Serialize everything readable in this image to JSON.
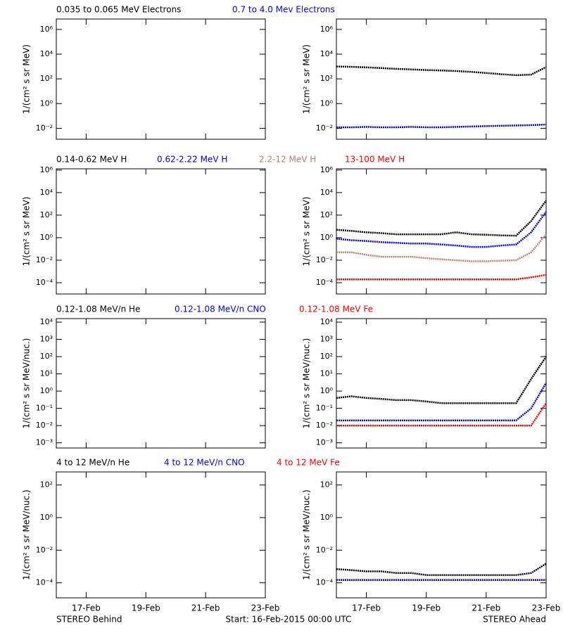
{
  "chart_data": [
    {
      "type": "line",
      "log_y": true,
      "ylabel": "1/(cm² s sr MeV)",
      "x": [
        0,
        0.5,
        1,
        1.5,
        2,
        2.5,
        3,
        3.5,
        4,
        4.5,
        5,
        5.5,
        6,
        6.5,
        7
      ],
      "ylim": [
        0.0013,
        7000000
      ],
      "yticks": [
        {
          "value": 1000000,
          "label": "10⁶"
        },
        {
          "value": 10000,
          "label": "10⁴"
        },
        {
          "value": 100,
          "label": "10²"
        },
        {
          "value": 1,
          "label": "10⁰"
        },
        {
          "value": 0.01,
          "label": "10⁻²"
        }
      ],
      "series": [
        {
          "name": "0.035 to 0.065 MeV Electrons",
          "color": "#000000",
          "values": [
            1000,
            950,
            850,
            750,
            650,
            580,
            520,
            480,
            430,
            370,
            300,
            240,
            200,
            220,
            900
          ]
        },
        {
          "name": "0.7 to 4.0 Mev Electrons",
          "color": "#0000ff",
          "values": [
            0.012,
            0.012,
            0.013,
            0.012,
            0.012,
            0.013,
            0.012,
            0.012,
            0.013,
            0.014,
            0.015,
            0.016,
            0.017,
            0.018,
            0.02
          ]
        }
      ]
    },
    {
      "type": "line",
      "log_y": true,
      "ylabel": "1/(cm² s sr MeV)",
      "x": [
        0,
        0.5,
        1,
        1.5,
        2,
        2.5,
        3,
        3.5,
        4,
        4.5,
        5,
        5.5,
        6,
        6.5,
        7
      ],
      "ylim": [
        1e-05,
        1300000
      ],
      "yticks": [
        {
          "value": 1000000,
          "label": "10⁶"
        },
        {
          "value": 10000,
          "label": "10⁴"
        },
        {
          "value": 100,
          "label": "10²"
        },
        {
          "value": 1,
          "label": "10⁰"
        },
        {
          "value": 0.01,
          "label": "10⁻²"
        },
        {
          "value": 0.0001,
          "label": "10⁻⁴"
        }
      ],
      "series": [
        {
          "name": "0.14-0.62 MeV H",
          "color": "#000000",
          "values": [
            5,
            4,
            3,
            2.5,
            2,
            2,
            2,
            2,
            3,
            2,
            1.8,
            1.6,
            1.5,
            30,
            2000
          ]
        },
        {
          "name": "0.62-2.22 MeV H",
          "color": "#0000ff",
          "values": [
            0.8,
            0.6,
            0.5,
            0.4,
            0.35,
            0.3,
            0.3,
            0.25,
            0.2,
            0.15,
            0.15,
            0.2,
            0.25,
            3,
            200
          ]
        },
        {
          "name": "2.2-12 MeV H",
          "color": "#c0806a",
          "values": [
            0.05,
            0.05,
            0.03,
            0.02,
            0.02,
            0.02,
            0.015,
            0.012,
            0.01,
            0.008,
            0.008,
            0.009,
            0.01,
            0.05,
            2
          ]
        },
        {
          "name": "13-100 MeV H",
          "color": "#ff0000",
          "values": [
            0.0002,
            0.0002,
            0.0002,
            0.0002,
            0.0002,
            0.0002,
            0.0002,
            0.0002,
            0.0002,
            0.0002,
            0.0002,
            0.0002,
            0.0002,
            0.0003,
            0.0005
          ]
        }
      ]
    },
    {
      "type": "line",
      "log_y": true,
      "ylabel": "1/(cm² s sr MeV/nuc.)",
      "x": [
        0,
        0.5,
        1,
        1.5,
        2,
        2.5,
        3,
        3.5,
        4,
        4.5,
        5,
        5.5,
        6,
        6.5,
        7
      ],
      "ylim": [
        0.0005,
        16000
      ],
      "yticks": [
        {
          "value": 10000,
          "label": "10⁴"
        },
        {
          "value": 1000,
          "label": "10³"
        },
        {
          "value": 100,
          "label": "10²"
        },
        {
          "value": 10,
          "label": "10¹"
        },
        {
          "value": 1,
          "label": "10⁰"
        },
        {
          "value": 0.1,
          "label": "10⁻¹"
        },
        {
          "value": 0.01,
          "label": "10⁻²"
        },
        {
          "value": 0.001,
          "label": "10⁻³"
        }
      ],
      "series": [
        {
          "name": "0.12-1.08 MeV/n He",
          "color": "#000000",
          "values": [
            0.4,
            0.5,
            0.4,
            0.35,
            0.3,
            0.3,
            0.25,
            0.2,
            0.2,
            0.2,
            0.2,
            0.2,
            0.2,
            5,
            100
          ]
        },
        {
          "name": "0.12-1.08 MeV/n CNO",
          "color": "#0000ff",
          "values": [
            0.02,
            0.02,
            0.02,
            0.02,
            0.02,
            0.02,
            0.02,
            0.02,
            0.02,
            0.02,
            0.02,
            0.02,
            0.02,
            0.1,
            3
          ]
        },
        {
          "name": "0.12-1.08 MeV Fe",
          "color": "#ff0000",
          "values": [
            0.01,
            0.01,
            0.01,
            0.01,
            0.01,
            0.01,
            0.01,
            0.01,
            0.01,
            0.01,
            0.01,
            0.01,
            0.01,
            0.01,
            0.2
          ]
        }
      ]
    },
    {
      "type": "line",
      "log_y": true,
      "ylabel": "1/(cm² s sr MeV/nuc.)",
      "x": [
        0,
        0.5,
        1,
        1.5,
        2,
        2.5,
        3,
        3.5,
        4,
        4.5,
        5,
        5.5,
        6,
        6.5,
        7
      ],
      "ylim": [
        1.2e-05,
        630
      ],
      "yticks": [
        {
          "value": 100,
          "label": "10²"
        },
        {
          "value": 1,
          "label": "10⁰"
        },
        {
          "value": 0.01,
          "label": "10⁻²"
        },
        {
          "value": 0.0001,
          "label": "10⁻⁴"
        }
      ],
      "series": [
        {
          "name": "4 to 12 MeV/n He",
          "color": "#000000",
          "values": [
            0.0007,
            0.0006,
            0.0005,
            0.0005,
            0.0004,
            0.0004,
            0.0003,
            0.0003,
            0.0003,
            0.0003,
            0.0003,
            0.0003,
            0.0003,
            0.0004,
            0.0015
          ]
        },
        {
          "name": "4 to 12 MeV/n CNO",
          "color": "#0000ff",
          "values": [
            0.00015,
            0.00015,
            0.00015,
            0.00015,
            0.00015,
            0.00015,
            0.00015,
            0.00015,
            0.00015,
            0.00015,
            0.00015,
            0.00015,
            0.00015,
            0.00015,
            0.00015
          ]
        },
        {
          "name": "4 to 12 MeV Fe",
          "color": "#ff0000",
          "values": [
            null,
            null,
            null,
            null,
            null,
            null,
            null,
            null,
            null,
            null,
            null,
            null,
            null,
            null,
            null
          ]
        }
      ]
    }
  ],
  "x_axis": {
    "xlim": [
      0,
      7
    ],
    "xticks": [
      {
        "value": 1,
        "label": "17-Feb"
      },
      {
        "value": 3,
        "label": "19-Feb"
      },
      {
        "value": 5,
        "label": "21-Feb"
      },
      {
        "value": 7,
        "label": "23-Feb"
      }
    ]
  },
  "footer": {
    "left": "STEREO Behind",
    "center": "Start: 16-Feb-2015 00:00 UTC",
    "right": "STEREO Ahead"
  }
}
